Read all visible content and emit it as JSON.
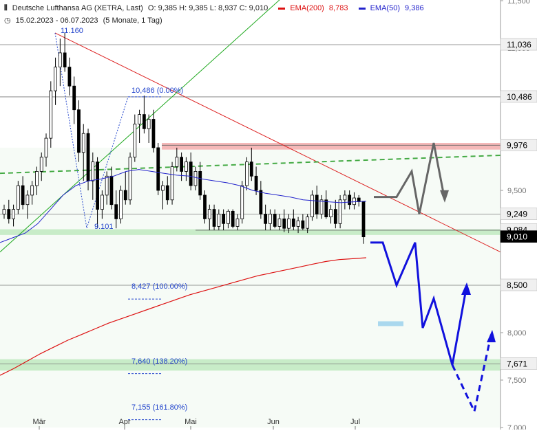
{
  "header": {
    "title": "Deutsche Lufthansa AG (XETRA, Last)",
    "ohlc": "O: 9,385   H: 9,385   L: 8,937   C: 9,010",
    "ema200_label": "EMA(200)",
    "ema200_value": "8,783",
    "ema50_label": "EMA(50)",
    "ema50_value": "9,386",
    "range": "15.02.2023 - 06.07.2023",
    "period": "(5 Monate, 1 Tag)"
  },
  "colors": {
    "up": "#ffffff",
    "down": "#000000",
    "ema200": "#dd1111",
    "ema50": "#2222cc",
    "trend_red": "#dd2222",
    "trend_green": "#22aa22",
    "support_green": "#44aa44",
    "projection_blue": "#1111dd",
    "projection_gray": "#666666",
    "zone_green": "#c8ecc8",
    "zone_red": "#f5b8b8",
    "tag_bg": "#f0f0f0",
    "light_blue_bar": "#aad8ee"
  },
  "chart_data": {
    "type": "candlestick",
    "y_axis": {
      "min": 7.0,
      "max": 11.5,
      "ticks": [
        "11,500",
        "11,000",
        "10,500",
        "10,000",
        "9,500",
        "9,000",
        "8,500",
        "8,000",
        "7,500",
        "7,000"
      ],
      "side": "right"
    },
    "x_axis": {
      "ticks": [
        "Mär",
        "Apr",
        "Mai",
        "Jun",
        "Jul"
      ]
    },
    "price_tags": [
      {
        "label": "11,036",
        "value": 11.036
      },
      {
        "label": "10,486",
        "value": 10.486
      },
      {
        "label": "9,976",
        "value": 9.976
      },
      {
        "label": "9,249",
        "value": 9.249
      },
      {
        "label": "9,084",
        "value": 9.084
      },
      {
        "label": "9,010",
        "value": 9.01,
        "highlight": true
      },
      {
        "label": "8,500",
        "value": 8.5
      },
      {
        "label": "7,671",
        "value": 7.671
      }
    ],
    "annotations": [
      {
        "text": "11.160",
        "value": 11.16
      },
      {
        "text": "9.101",
        "value": 9.101
      },
      {
        "text": "10,486 (0.00%)",
        "value": 10.486
      },
      {
        "text": "8,427 (100.00%)",
        "value": 8.427
      },
      {
        "text": "7,640 (138.20%)",
        "value": 7.64
      },
      {
        "text": "7,155 (161.80%)",
        "value": 7.155
      }
    ],
    "zones": [
      {
        "type": "resistance",
        "from": 9.93,
        "to": 10.0
      },
      {
        "type": "support",
        "from": 9.03,
        "to": 9.09
      },
      {
        "type": "support",
        "from": 7.6,
        "to": 7.72
      }
    ],
    "candles": [
      {
        "o": 9.25,
        "h": 9.35,
        "l": 9.2,
        "c": 9.3
      },
      {
        "o": 9.3,
        "h": 9.4,
        "l": 9.15,
        "c": 9.2
      },
      {
        "o": 9.2,
        "h": 9.35,
        "l": 9.12,
        "c": 9.3
      },
      {
        "o": 9.3,
        "h": 9.6,
        "l": 9.25,
        "c": 9.55
      },
      {
        "o": 9.55,
        "h": 9.65,
        "l": 9.3,
        "c": 9.35
      },
      {
        "o": 9.35,
        "h": 9.5,
        "l": 9.2,
        "c": 9.45
      },
      {
        "o": 9.45,
        "h": 9.6,
        "l": 9.35,
        "c": 9.55
      },
      {
        "o": 9.55,
        "h": 9.75,
        "l": 9.45,
        "c": 9.7
      },
      {
        "o": 9.7,
        "h": 9.9,
        "l": 9.6,
        "c": 9.85
      },
      {
        "o": 9.85,
        "h": 10.1,
        "l": 9.75,
        "c": 10.05
      },
      {
        "o": 10.05,
        "h": 10.65,
        "l": 9.95,
        "c": 10.55
      },
      {
        "o": 10.55,
        "h": 10.9,
        "l": 10.4,
        "c": 10.8
      },
      {
        "o": 10.8,
        "h": 11.1,
        "l": 10.6,
        "c": 10.95
      },
      {
        "o": 10.95,
        "h": 11.16,
        "l": 10.75,
        "c": 10.8
      },
      {
        "o": 10.8,
        "h": 10.9,
        "l": 10.5,
        "c": 10.6
      },
      {
        "o": 10.6,
        "h": 10.7,
        "l": 10.2,
        "c": 10.35
      },
      {
        "o": 10.35,
        "h": 10.45,
        "l": 9.8,
        "c": 9.9
      },
      {
        "o": 9.9,
        "h": 10.2,
        "l": 9.6,
        "c": 10.1
      },
      {
        "o": 10.1,
        "h": 10.15,
        "l": 9.5,
        "c": 9.6
      },
      {
        "o": 9.6,
        "h": 9.9,
        "l": 9.4,
        "c": 9.8
      },
      {
        "o": 9.8,
        "h": 9.85,
        "l": 9.1,
        "c": 9.3
      },
      {
        "o": 9.3,
        "h": 9.5,
        "l": 9.2,
        "c": 9.45
      },
      {
        "o": 9.45,
        "h": 9.7,
        "l": 9.35,
        "c": 9.65
      },
      {
        "o": 9.65,
        "h": 9.75,
        "l": 9.3,
        "c": 9.35
      },
      {
        "o": 9.35,
        "h": 9.5,
        "l": 9.1,
        "c": 9.2
      },
      {
        "o": 9.2,
        "h": 9.55,
        "l": 9.15,
        "c": 9.5
      },
      {
        "o": 9.5,
        "h": 9.7,
        "l": 9.35,
        "c": 9.4
      },
      {
        "o": 9.4,
        "h": 9.9,
        "l": 9.35,
        "c": 9.85
      },
      {
        "o": 9.85,
        "h": 10.3,
        "l": 9.8,
        "c": 10.2
      },
      {
        "o": 10.2,
        "h": 10.35,
        "l": 10.0,
        "c": 10.3
      },
      {
        "o": 10.3,
        "h": 10.5,
        "l": 10.1,
        "c": 10.15
      },
      {
        "o": 10.15,
        "h": 10.3,
        "l": 10.0,
        "c": 10.25
      },
      {
        "o": 10.25,
        "h": 10.35,
        "l": 9.9,
        "c": 9.95
      },
      {
        "o": 9.95,
        "h": 10.0,
        "l": 9.45,
        "c": 9.5
      },
      {
        "o": 9.5,
        "h": 9.6,
        "l": 9.3,
        "c": 9.55
      },
      {
        "o": 9.55,
        "h": 9.65,
        "l": 9.35,
        "c": 9.4
      },
      {
        "o": 9.4,
        "h": 9.8,
        "l": 9.35,
        "c": 9.75
      },
      {
        "o": 9.75,
        "h": 9.95,
        "l": 9.7,
        "c": 9.85
      },
      {
        "o": 9.85,
        "h": 9.9,
        "l": 9.6,
        "c": 9.7
      },
      {
        "o": 9.7,
        "h": 9.85,
        "l": 9.6,
        "c": 9.8
      },
      {
        "o": 9.8,
        "h": 9.9,
        "l": 9.5,
        "c": 9.55
      },
      {
        "o": 9.55,
        "h": 9.75,
        "l": 9.5,
        "c": 9.7
      },
      {
        "o": 9.7,
        "h": 9.8,
        "l": 9.4,
        "c": 9.45
      },
      {
        "o": 9.45,
        "h": 9.5,
        "l": 9.15,
        "c": 9.2
      },
      {
        "o": 9.2,
        "h": 9.35,
        "l": 9.08,
        "c": 9.3
      },
      {
        "o": 9.3,
        "h": 9.35,
        "l": 9.08,
        "c": 9.12
      },
      {
        "o": 9.12,
        "h": 9.3,
        "l": 9.08,
        "c": 9.25
      },
      {
        "o": 9.25,
        "h": 9.3,
        "l": 9.08,
        "c": 9.15
      },
      {
        "o": 9.15,
        "h": 9.3,
        "l": 9.1,
        "c": 9.28
      },
      {
        "o": 9.28,
        "h": 9.3,
        "l": 9.1,
        "c": 9.12
      },
      {
        "o": 9.12,
        "h": 9.25,
        "l": 9.08,
        "c": 9.2
      },
      {
        "o": 9.2,
        "h": 9.6,
        "l": 9.15,
        "c": 9.55
      },
      {
        "o": 9.55,
        "h": 9.85,
        "l": 9.5,
        "c": 9.8
      },
      {
        "o": 9.8,
        "h": 9.95,
        "l": 9.6,
        "c": 9.65
      },
      {
        "o": 9.65,
        "h": 9.75,
        "l": 9.45,
        "c": 9.5
      },
      {
        "o": 9.5,
        "h": 9.6,
        "l": 9.2,
        "c": 9.25
      },
      {
        "o": 9.25,
        "h": 9.35,
        "l": 9.08,
        "c": 9.15
      },
      {
        "o": 9.15,
        "h": 9.3,
        "l": 9.08,
        "c": 9.25
      },
      {
        "o": 9.25,
        "h": 9.3,
        "l": 9.1,
        "c": 9.12
      },
      {
        "o": 9.12,
        "h": 9.25,
        "l": 9.08,
        "c": 9.2
      },
      {
        "o": 9.2,
        "h": 9.3,
        "l": 9.06,
        "c": 9.1
      },
      {
        "o": 9.1,
        "h": 9.25,
        "l": 9.05,
        "c": 9.2
      },
      {
        "o": 9.2,
        "h": 9.3,
        "l": 9.08,
        "c": 9.12
      },
      {
        "o": 9.12,
        "h": 9.22,
        "l": 9.05,
        "c": 9.18
      },
      {
        "o": 9.18,
        "h": 9.25,
        "l": 9.08,
        "c": 9.1
      },
      {
        "o": 9.1,
        "h": 9.25,
        "l": 9.05,
        "c": 9.22
      },
      {
        "o": 9.22,
        "h": 9.5,
        "l": 9.18,
        "c": 9.45
      },
      {
        "o": 9.45,
        "h": 9.55,
        "l": 9.2,
        "c": 9.25
      },
      {
        "o": 9.25,
        "h": 9.45,
        "l": 9.2,
        "c": 9.4
      },
      {
        "o": 9.4,
        "h": 9.5,
        "l": 9.2,
        "c": 9.22
      },
      {
        "o": 9.22,
        "h": 9.35,
        "l": 9.15,
        "c": 9.3
      },
      {
        "o": 9.3,
        "h": 9.4,
        "l": 9.1,
        "c": 9.15
      },
      {
        "o": 9.15,
        "h": 9.45,
        "l": 9.1,
        "c": 9.4
      },
      {
        "o": 9.4,
        "h": 9.5,
        "l": 9.3,
        "c": 9.45
      },
      {
        "o": 9.45,
        "h": 9.5,
        "l": 9.3,
        "c": 9.35
      },
      {
        "o": 9.35,
        "h": 9.48,
        "l": 9.3,
        "c": 9.42
      },
      {
        "o": 9.42,
        "h": 9.45,
        "l": 9.33,
        "c": 9.38
      },
      {
        "o": 9.385,
        "h": 9.385,
        "l": 8.937,
        "c": 9.01
      }
    ],
    "ema200": [
      7.55,
      7.62,
      7.7,
      7.78,
      7.85,
      7.92,
      7.98,
      8.04,
      8.1,
      8.15,
      8.2,
      8.25,
      8.3,
      8.35,
      8.4,
      8.44,
      8.48,
      8.52,
      8.56,
      8.6,
      8.63,
      8.66,
      8.69,
      8.72,
      8.75,
      8.77,
      8.78,
      8.79
    ],
    "ema50": [
      8.95,
      9.0,
      9.05,
      9.15,
      9.3,
      9.45,
      9.55,
      9.6,
      9.62,
      9.65,
      9.7,
      9.72,
      9.7,
      9.68,
      9.66,
      9.65,
      9.62,
      9.6,
      9.58,
      9.55,
      9.5,
      9.47,
      9.45,
      9.43,
      9.4,
      9.39,
      9.38,
      9.37,
      9.38,
      9.386
    ],
    "projections": [
      {
        "name": "gray_path",
        "style": "solid",
        "values": [
          9.43,
          9.43,
          9.7,
          9.25,
          10.0,
          9.4
        ]
      },
      {
        "name": "blue_path",
        "style": "solid",
        "values": [
          8.95,
          8.95,
          8.5,
          8.95,
          8.05,
          8.36,
          7.66,
          8.5
        ]
      },
      {
        "name": "blue_dashed",
        "style": "dashed",
        "values": [
          7.66,
          7.17,
          8.0
        ]
      }
    ]
  }
}
